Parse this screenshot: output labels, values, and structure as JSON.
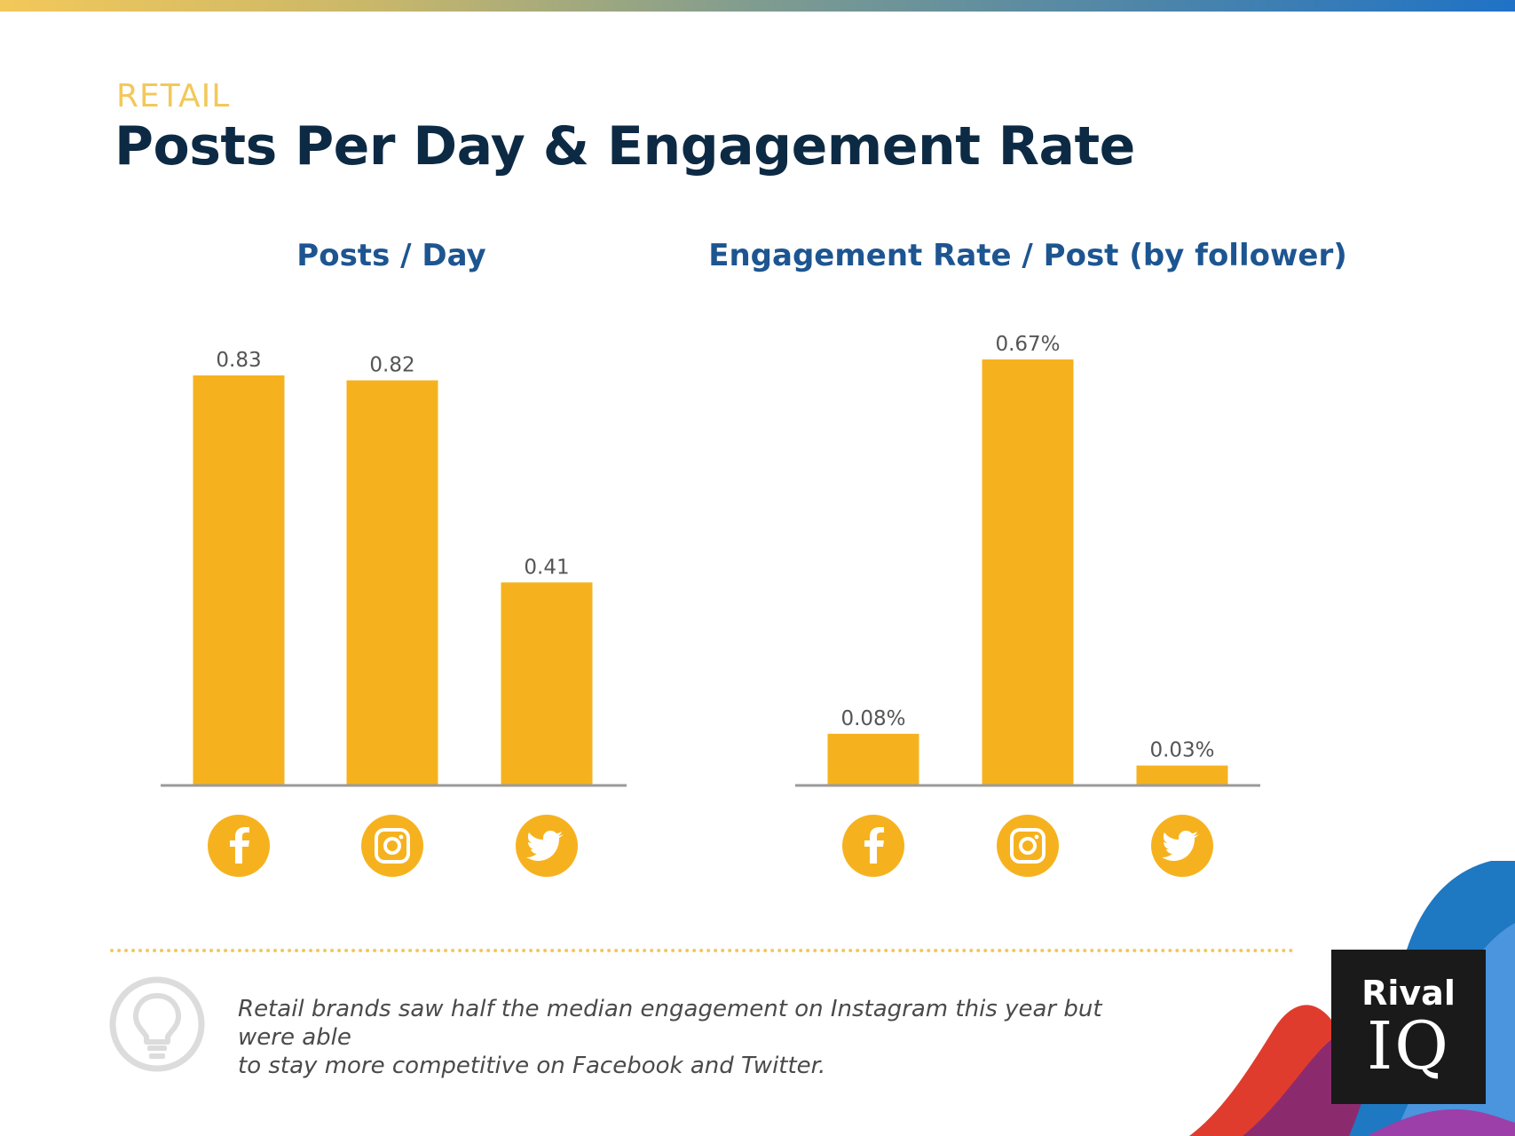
{
  "header": {
    "eyebrow": "RETAIL",
    "title": "Posts Per Day & Engagement Rate"
  },
  "colors": {
    "bar": "#F6B21E",
    "axis": "#9a9a9a",
    "title": "#0d2a44",
    "subtitle": "#1d5591",
    "eyebrow": "#f3c85a",
    "label": "#555555",
    "insight": "#4a4a4a"
  },
  "chart_data": [
    {
      "type": "bar",
      "title": "Posts / Day",
      "categories": [
        "Facebook",
        "Instagram",
        "Twitter"
      ],
      "category_icons": [
        "facebook-icon",
        "instagram-icon",
        "twitter-icon"
      ],
      "values": [
        0.83,
        0.82,
        0.41
      ],
      "labels": [
        "0.83",
        "0.82",
        "0.41"
      ],
      "ylim": [
        0,
        0.83
      ],
      "grid": false,
      "xlabel": "",
      "ylabel": ""
    },
    {
      "type": "bar",
      "title": "Engagement Rate / Post (by follower)",
      "categories": [
        "Facebook",
        "Instagram",
        "Twitter"
      ],
      "category_icons": [
        "facebook-icon",
        "instagram-icon",
        "twitter-icon"
      ],
      "values": [
        0.08,
        0.67,
        0.03
      ],
      "labels": [
        "0.08%",
        "0.67%",
        "0.03%"
      ],
      "unit": "%",
      "ylim": [
        0,
        0.67
      ],
      "grid": false,
      "xlabel": "",
      "ylabel": ""
    }
  ],
  "insight": {
    "text": "Retail brands saw half the median engagement on Instagram this year but were able\nto stay more competitive on Facebook and Twitter."
  },
  "logo": {
    "line1": "Rival",
    "line2": "IQ"
  }
}
